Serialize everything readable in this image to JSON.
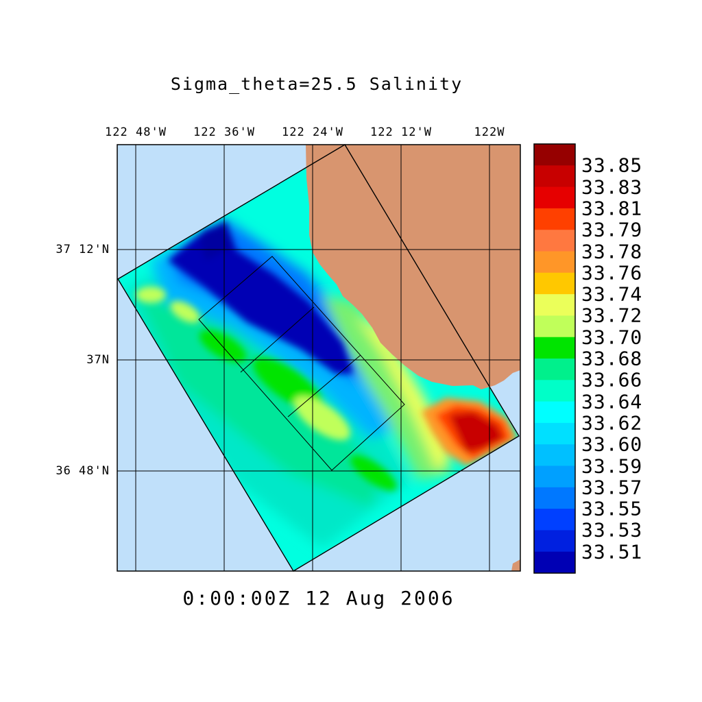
{
  "title": "Sigma_theta=25.5 Salinity",
  "timestamp": "0:00:00Z  12 Aug 2006",
  "longitude_labels": [
    "122 48'W",
    "122 36'W",
    "122 24'W",
    "122 12'W",
    "122W"
  ],
  "latitude_labels": [
    "37 12'N",
    "37N",
    "36 48'N"
  ],
  "colorbar": {
    "labels": [
      "33.85",
      "33.83",
      "33.81",
      "33.79",
      "33.78",
      "33.76",
      "33.74",
      "33.72",
      "33.70",
      "33.68",
      "33.66",
      "33.64",
      "33.62",
      "33.60",
      "33.59",
      "33.57",
      "33.55",
      "33.53",
      "33.51"
    ],
    "colors": [
      "#960000",
      "#c80000",
      "#e60000",
      "#ff4000",
      "#ff7840",
      "#ff9628",
      "#ffc800",
      "#ebff5a",
      "#c0ff5a",
      "#00e400",
      "#00f08c",
      "#00ffc8",
      "#00ffff",
      "#00e0ff",
      "#00c0ff",
      "#00a0ff",
      "#0078ff",
      "#0040ff",
      "#0020e0",
      "#0000b4"
    ]
  },
  "colors": {
    "ocean": "#c0e0fa",
    "land": "#d8956f",
    "frame": "#000000"
  }
}
